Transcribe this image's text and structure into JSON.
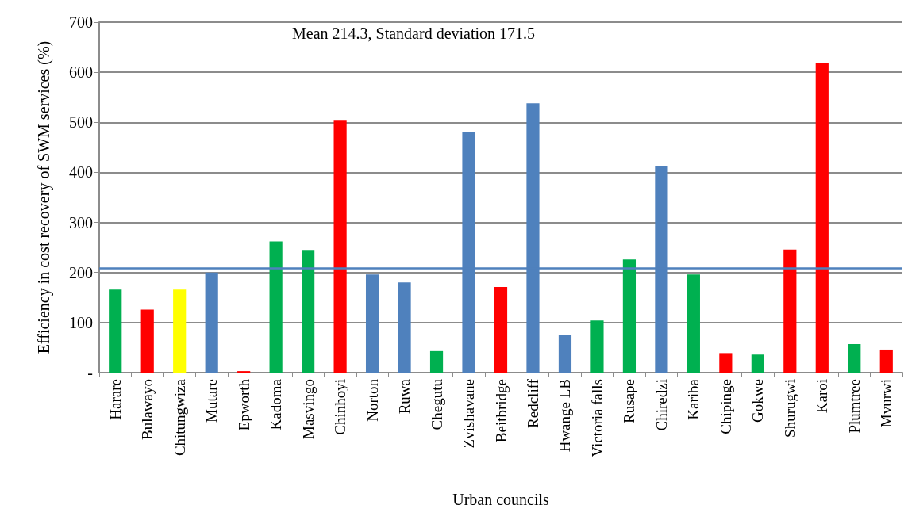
{
  "chart_data": {
    "type": "bar",
    "xlabel": "Urban councils",
    "ylabel": "Efficiency in cost recovery of SWM services (%)",
    "categories": [
      "Harare",
      "Bulawayo",
      "Chitungwiza",
      "Mutare",
      "Epworth",
      "Kadoma",
      "Masvingo",
      "Chinhoyi",
      "Norton",
      "Ruwa",
      "Chegutu",
      "Zvishavane",
      "Beitbridge",
      "Redcliff",
      "Hwange LB",
      "Victoria falls",
      "Rusape",
      "Chiredzi",
      "Kariba",
      "Chipinge",
      "Gokwe",
      "Shurugwi",
      "Karoi",
      "Plumtree",
      "Mvurwi"
    ],
    "values": [
      166,
      126,
      166,
      200,
      3,
      262,
      245,
      505,
      196,
      180,
      43,
      481,
      171,
      538,
      76,
      104,
      226,
      412,
      196,
      39,
      36,
      246,
      619,
      57,
      46
    ],
    "colors": [
      "#00b050",
      "#ff0000",
      "#ffff00",
      "#4f81bd",
      "#ff0000",
      "#00b050",
      "#00b050",
      "#ff0000",
      "#4f81bd",
      "#4f81bd",
      "#00b050",
      "#4f81bd",
      "#ff0000",
      "#4f81bd",
      "#4f81bd",
      "#00b050",
      "#00b050",
      "#4f81bd",
      "#00b050",
      "#ff0000",
      "#00b050",
      "#ff0000",
      "#ff0000",
      "#00b050",
      "#ff0000"
    ],
    "ylim": [
      0,
      700
    ],
    "yticks": [
      {
        "value": 0,
        "label": "-"
      },
      100,
      200,
      300,
      400,
      500,
      600,
      700
    ],
    "grid": "y",
    "ref_lines": [
      {
        "axis": "y",
        "value": 208,
        "color": "#4f81bd"
      }
    ],
    "annotations": [
      "Mean 214.3, Standard deviation 171.5"
    ]
  }
}
